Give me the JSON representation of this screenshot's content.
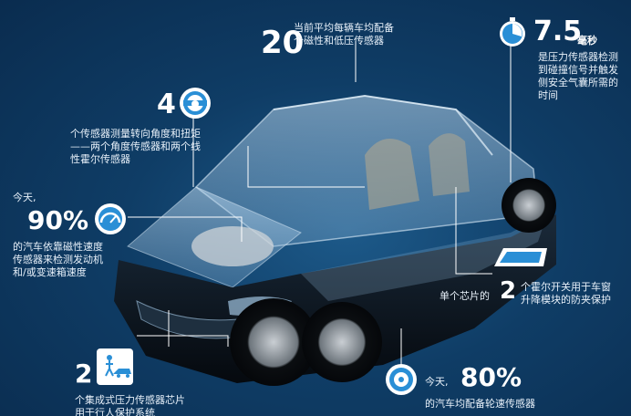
{
  "stats": {
    "sensors_per_car": {
      "number": "20",
      "line1": "当前平均每辆车均配备",
      "line2": "个磁性和低压传感器"
    },
    "airbag_time": {
      "number": "7.5",
      "unit": "毫秒",
      "line1": "是压力传感器检测",
      "line2": "到碰撞信号并触发",
      "line3": "侧安全气囊所需的",
      "line4": "时间"
    },
    "steering_sensors": {
      "number": "4",
      "line1": "个传感器测量转向角度和扭矩",
      "line2": "——两个角度传感器和两个线",
      "line3": "性霍尔传感器"
    },
    "speed_sensors": {
      "prefix": "今天,",
      "number": "90%",
      "line1": "的汽车依靠磁性速度",
      "line2": "传感器来检测发动机",
      "line3": "和/或变速箱速度"
    },
    "hall_switch": {
      "prefix": "单个芯片的",
      "number": "2",
      "line1": "个霍尔开关用于车窗",
      "line2": "升降模块的防夹保护"
    },
    "pressure_chips": {
      "number": "2",
      "line1": "个集成式压力传感器芯片",
      "line2": "用于行人保护系统"
    },
    "wheel_speed": {
      "prefix": "今天,",
      "number": "80%",
      "line1": "的汽车均配备轮速传感器"
    }
  },
  "icons": [
    "stopwatch-icon",
    "steering-wheel-icon",
    "speedometer-icon",
    "window-icon",
    "pedestrian-car-icon",
    "tire-icon"
  ],
  "colors": {
    "accent": "#2a8fd6",
    "background": "#0f3d66"
  }
}
